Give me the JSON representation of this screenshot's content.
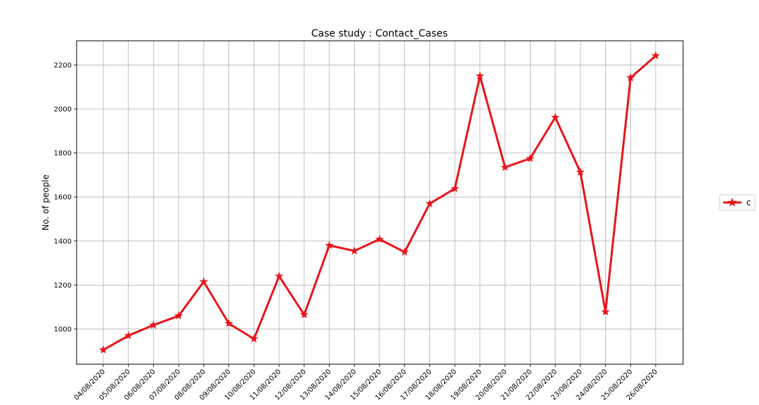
{
  "chart_data": {
    "type": "line",
    "title": "Case study : Contact_Cases",
    "xlabel": "",
    "ylabel": "No. of people",
    "categories": [
      "04/08/2020",
      "05/08/2020",
      "06/08/2020",
      "07/08/2020",
      "08/08/2020",
      "09/08/2020",
      "10/08/2020",
      "11/08/2020",
      "12/08/2020",
      "13/08/2020",
      "14/08/2020",
      "15/08/2020",
      "16/08/2020",
      "17/08/2020",
      "18/08/2020",
      "19/08/2020",
      "20/08/2020",
      "21/08/2020",
      "22/08/2020",
      "23/08/2020",
      "24/08/2020",
      "25/08/2020",
      "26/08/2020"
    ],
    "series": [
      {
        "name": "c",
        "values": [
          905,
          970,
          1018,
          1060,
          1215,
          1025,
          955,
          1240,
          1065,
          1380,
          1355,
          1408,
          1350,
          1570,
          1638,
          2150,
          1735,
          1775,
          1962,
          1713,
          1078,
          2142,
          2242
        ]
      }
    ],
    "yticks": [
      1000,
      1200,
      1400,
      1600,
      1800,
      2000,
      2200
    ],
    "ylim": [
      840,
      2310
    ],
    "grid": true,
    "legend_position": "right",
    "line_color": "#e8141a",
    "marker": "star"
  }
}
